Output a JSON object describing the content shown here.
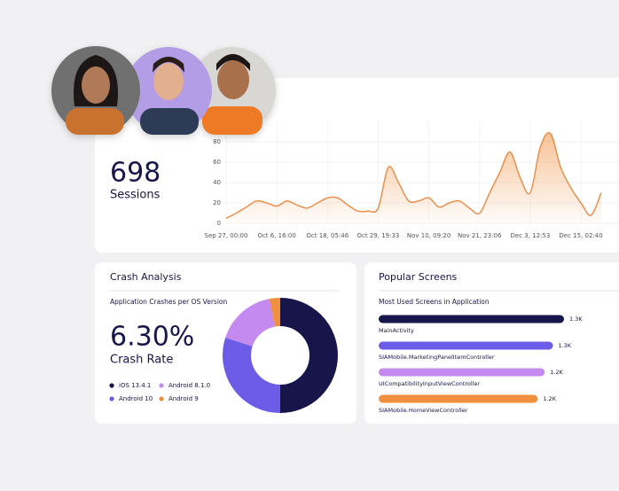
{
  "chart_data": [
    {
      "type": "line",
      "kpi_value": "698",
      "kpi_label": "Sessions",
      "categories": [
        "Sep 27, 00:00",
        null,
        null,
        null,
        null,
        "Oct 6, 16:00",
        null,
        null,
        null,
        null,
        "Oct 18, 05:46",
        null,
        null,
        null,
        null,
        "Oct 29, 19:33",
        null,
        null,
        null,
        null,
        "Nov 10, 09:20",
        null,
        null,
        null,
        null,
        "Nov 21, 23:06",
        null,
        null,
        null,
        null,
        "Dec 3, 12:53",
        null,
        null,
        null,
        null,
        "Dec 15, 02:40",
        null,
        null
      ],
      "values": [
        5,
        10,
        16,
        22,
        20,
        17,
        22,
        18,
        15,
        20,
        25,
        25,
        18,
        12,
        12,
        15,
        55,
        40,
        22,
        22,
        25,
        16,
        20,
        22,
        15,
        10,
        30,
        50,
        70,
        45,
        30,
        75,
        88,
        55,
        35,
        20,
        8,
        30
      ],
      "color": "#e8914f",
      "ylim": [
        0,
        100
      ],
      "yticks": [
        0,
        20,
        40,
        60,
        80
      ],
      "grid": true
    },
    {
      "type": "pie",
      "title": "Crash Analysis",
      "subtitle": "Application Crashes per OS Version",
      "kpi_value": "6.30%",
      "kpi_label": "Crash Rate",
      "categories": [
        "iOS 13.4.1",
        "Android 10",
        "Android 8.1.0",
        "Android 9"
      ],
      "values": [
        50,
        30,
        17,
        3
      ],
      "colors": [
        "#17154a",
        "#6c5ce7",
        "#c58af0",
        "#f0903f"
      ]
    },
    {
      "type": "hbar",
      "title": "Popular Screens",
      "subtitle": "Most Used Screens in Application",
      "categories": [
        "MainActivity",
        "SIAMobile.MarketingPanelItemController",
        "UICompatibilityInputViewController",
        "SIAMobile.HomeViewController"
      ],
      "values": [
        1340,
        1260,
        1200,
        1150
      ],
      "value_labels": [
        "1.3K",
        "1.3K",
        "1.2K",
        "1.2K"
      ],
      "colors": [
        "#17154a",
        "#6c5ce7",
        "#c58af0",
        "#f0903f"
      ]
    }
  ]
}
